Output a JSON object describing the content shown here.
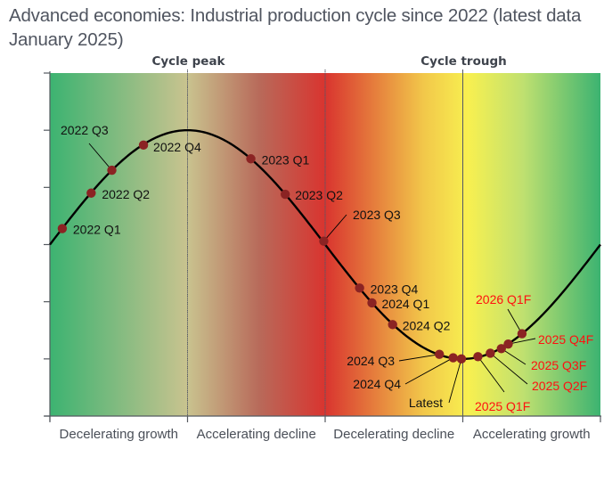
{
  "title": "Advanced economies: Industrial production cycle since 2022 (latest data January 2025)",
  "colors": {
    "curve": "#000000",
    "point": "#8b2323",
    "historical_label": "#111111",
    "forecast_label": "#ff1010",
    "axis": "#555a60",
    "gradient": [
      "#3cb371",
      "#c9c38f",
      "#b86a5a",
      "#d9342f",
      "#f2c84a",
      "#f8f050",
      "#bfe070",
      "#3cb371"
    ]
  },
  "chart_data": {
    "type": "line",
    "title": "Advanced economies: Industrial production cycle since 2022 (latest data January 2025)",
    "xlabel": "",
    "ylabel": "",
    "curve": "sine",
    "x_range": [
      0,
      4
    ],
    "ylim": [
      -1.5,
      1.5
    ],
    "y_ticks": [
      -1.5,
      -1.0,
      -0.5,
      0,
      0.5,
      1.0,
      1.5
    ],
    "y_tick_labels_shown": false,
    "grid": false,
    "phases": [
      {
        "label": "Decelerating growth",
        "x_start": 0,
        "x_end": 1
      },
      {
        "label": "Accelerating decline",
        "x_start": 1,
        "x_end": 2
      },
      {
        "label": "Decelerating decline",
        "x_start": 2,
        "x_end": 3
      },
      {
        "label": "Accelerating growth",
        "x_start": 3,
        "x_end": 4
      }
    ],
    "markers": [
      {
        "label": "Cycle peak",
        "x": 1
      },
      {
        "label": "Cycle trough",
        "x": 3
      }
    ],
    "points": [
      {
        "label": "2022 Q1",
        "x": 0.09,
        "y": 0.14,
        "forecast": false
      },
      {
        "label": "2022 Q2",
        "x": 0.3,
        "y": 0.45,
        "forecast": false
      },
      {
        "label": "2022 Q3",
        "x": 0.45,
        "y": 0.65,
        "forecast": false
      },
      {
        "label": "2022 Q4",
        "x": 0.68,
        "y": 0.87,
        "forecast": false
      },
      {
        "label": "2023 Q1",
        "x": 1.46,
        "y": 0.75,
        "forecast": false
      },
      {
        "label": "2023 Q2",
        "x": 1.71,
        "y": 0.44,
        "forecast": false
      },
      {
        "label": "2023 Q3",
        "x": 1.99,
        "y": 0.03,
        "forecast": false
      },
      {
        "label": "2023 Q4",
        "x": 2.25,
        "y": -0.38,
        "forecast": false
      },
      {
        "label": "2024 Q1",
        "x": 2.34,
        "y": -0.51,
        "forecast": false
      },
      {
        "label": "2024 Q2",
        "x": 2.49,
        "y": -0.7,
        "forecast": false
      },
      {
        "label": "2024 Q3",
        "x": 2.83,
        "y": -0.96,
        "forecast": false
      },
      {
        "label": "2024 Q4",
        "x": 2.93,
        "y": -0.99,
        "forecast": false
      },
      {
        "label": "Latest",
        "x": 2.99,
        "y": -1.0,
        "forecast": false
      },
      {
        "label": "2025 Q1F",
        "x": 3.11,
        "y": -0.98,
        "forecast": true
      },
      {
        "label": "2025 Q2F",
        "x": 3.2,
        "y": -0.95,
        "forecast": true
      },
      {
        "label": "2025 Q3F",
        "x": 3.28,
        "y": -0.91,
        "forecast": true
      },
      {
        "label": "2025 Q4F",
        "x": 3.33,
        "y": -0.87,
        "forecast": true
      },
      {
        "label": "2026 Q1F",
        "x": 3.43,
        "y": -0.78,
        "forecast": true
      }
    ]
  }
}
